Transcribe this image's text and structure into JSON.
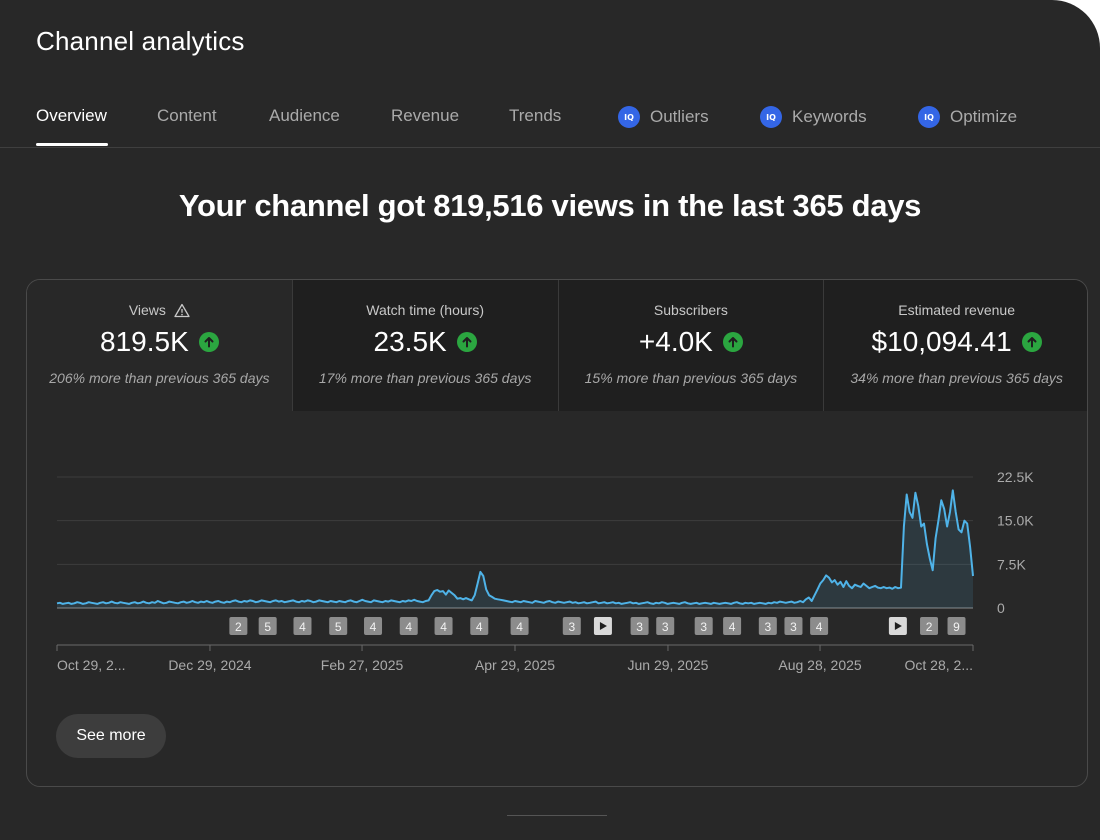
{
  "app": {
    "title": "Channel analytics"
  },
  "tabs": [
    {
      "label": "Overview",
      "active": true,
      "icon": null
    },
    {
      "label": "Content",
      "active": false,
      "icon": null
    },
    {
      "label": "Audience",
      "active": false,
      "icon": null
    },
    {
      "label": "Revenue",
      "active": false,
      "icon": null
    },
    {
      "label": "Trends",
      "active": false,
      "icon": null
    },
    {
      "label": "Outliers",
      "active": false,
      "icon": "iq-icon"
    },
    {
      "label": "Keywords",
      "active": false,
      "icon": "iq-icon"
    },
    {
      "label": "Optimize",
      "active": false,
      "icon": "iq-icon"
    }
  ],
  "iq_icon_text": "IQ",
  "headline": "Your channel got 819,516 views in the last 365 days",
  "metrics": [
    {
      "label": "Views",
      "value": "819.5K",
      "sub": "206% more than previous 365 days",
      "warning_icon": true
    },
    {
      "label": "Watch time (hours)",
      "value": "23.5K",
      "sub": "17% more than previous 365 days",
      "warning_icon": false
    },
    {
      "label": "Subscribers",
      "value": "+4.0K",
      "sub": "15% more than previous 365 days",
      "warning_icon": false
    },
    {
      "label": "Estimated revenue",
      "value": "$10,094.41",
      "sub": "34% more than previous 365 days",
      "warning_icon": false
    }
  ],
  "colors": {
    "line": "#4fb3e8",
    "up": "#2ba640",
    "iq": "#3466e6"
  },
  "chart_data": {
    "type": "line",
    "y_ticks": [
      "22.5K",
      "15.0K",
      "7.5K",
      "0"
    ],
    "ylim": [
      0,
      22500
    ],
    "x_ticks": [
      "Oct 29, 2...",
      "Dec 29, 2024",
      "Feb 27, 2025",
      "Apr 29, 2025",
      "Jun 29, 2025",
      "Aug 28, 2025",
      "Oct 28, 2..."
    ],
    "series": [
      {
        "values": [
          800,
          900,
          700,
          800,
          900,
          700,
          800,
          1000,
          900,
          700,
          800,
          1000,
          900,
          800,
          700,
          900,
          1000,
          800,
          900,
          1100,
          900,
          800,
          1000,
          900,
          800,
          700,
          900,
          1000,
          800,
          900,
          1100,
          900,
          800,
          1000,
          900,
          1200,
          1000,
          800,
          900,
          1100,
          1000,
          900,
          800,
          1000,
          1100,
          900,
          1000,
          1200,
          1000,
          900,
          1100,
          1000,
          1200,
          1000,
          900,
          1100,
          1200,
          1000,
          900,
          1100,
          1000,
          1200,
          1300,
          1100,
          1000,
          1200,
          1100,
          1300,
          1200,
          1000,
          1100,
          1300,
          1200,
          1100,
          1000,
          1200,
          1300,
          1100,
          1200,
          1000,
          1100,
          1200,
          1300,
          1100,
          1000,
          1200,
          1100,
          1300,
          1200,
          1000,
          1100,
          1300,
          1200,
          1100,
          1000,
          1200,
          1100,
          1000,
          1200,
          1100,
          1000,
          1200,
          1300,
          1100,
          1000,
          1200,
          1400,
          1200,
          1100,
          1000,
          1300,
          1200,
          1100,
          1000,
          1200,
          1100,
          1300,
          1200,
          1100,
          1000,
          1200,
          1100,
          1300,
          1200,
          1400,
          1200,
          1100,
          1000,
          1200,
          1300,
          2200,
          2900,
          3100,
          2800,
          2900,
          2300,
          3000,
          2600,
          2200,
          1600,
          1700,
          1500,
          1700,
          1500,
          1300,
          2200,
          4200,
          6200,
          5500,
          3200,
          2200,
          1900,
          1600,
          1500,
          1400,
          1300,
          1200,
          1100,
          1000,
          1200,
          1100,
          1000,
          1200,
          1100,
          1000,
          900,
          1200,
          1100,
          1000,
          900,
          1100,
          1200,
          1000,
          900,
          1100,
          1000,
          900,
          1000,
          1100,
          900,
          1000,
          800,
          900,
          1000,
          800,
          900,
          1000,
          1100,
          800,
          900,
          1000,
          800,
          900,
          1000,
          800,
          900,
          700,
          800,
          900,
          1000,
          800,
          900,
          700,
          800,
          900,
          1000,
          800,
          700,
          900,
          800,
          1000,
          900,
          700,
          800,
          900,
          800,
          700,
          900,
          1000,
          800,
          700,
          800,
          900,
          700,
          800,
          900,
          800,
          700,
          900,
          800,
          700,
          800,
          900,
          800,
          700,
          900,
          1000,
          800,
          700,
          900,
          800,
          900,
          700,
          800,
          900,
          800,
          700,
          900,
          800,
          1000,
          900,
          1100,
          1000,
          900,
          1000,
          1100,
          900,
          1000,
          1200,
          1000,
          1500,
          1800,
          1200,
          2200,
          3200,
          4200,
          4800,
          5600,
          5200,
          4400,
          4800,
          4000,
          4500,
          3600,
          4600,
          3800,
          3400,
          4000,
          3800,
          3600,
          4200,
          3800,
          3400,
          3600,
          3800,
          3500,
          3400,
          3600,
          3400,
          3500,
          3300,
          3600,
          3400,
          3500,
          14000,
          19500,
          16500,
          15500,
          19800,
          17500,
          14000,
          14500,
          11000,
          8500,
          6500,
          12000,
          15000,
          18500,
          17000,
          14000,
          16500,
          20200,
          16500,
          13500,
          13000,
          15000,
          14500,
          10500,
          5500
        ]
      }
    ],
    "markers": [
      "2",
      "5",
      "4",
      "5",
      "4",
      "4",
      "4",
      "4",
      "4",
      "3",
      "play",
      "3",
      "3",
      "3",
      "4",
      "3",
      "3",
      "4",
      "play",
      "2",
      "9"
    ]
  },
  "see_more_label": "See more"
}
